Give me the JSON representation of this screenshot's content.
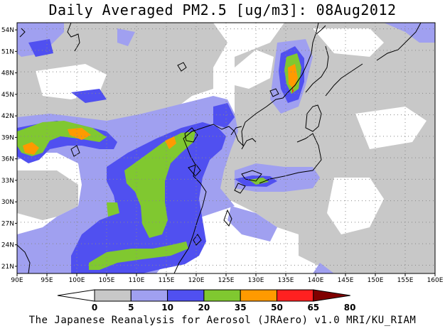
{
  "title": "Daily Averaged PM2.5 [ug/m3]: 08Aug2012",
  "credit": "The Japanese Reanalysis for Aerosol (JRAero) v1.0 MRI/KU_RIAM",
  "map": {
    "lon_range": [
      90,
      160
    ],
    "lat_range": [
      20,
      55
    ],
    "lon_labels": [
      "90E",
      "95E",
      "100E",
      "105E",
      "110E",
      "115E",
      "120E",
      "125E",
      "130E",
      "135E",
      "140E",
      "145E",
      "150E",
      "155E",
      "160E"
    ],
    "lat_labels": [
      "21N",
      "24N",
      "27N",
      "30N",
      "33N",
      "36N",
      "39N",
      "42N",
      "45N",
      "48N",
      "51N",
      "54N"
    ],
    "grid": "dotted"
  },
  "colorbar": {
    "levels": [
      "0",
      "5",
      "10",
      "20",
      "35",
      "50",
      "65",
      "80"
    ],
    "colors": [
      "#ffffff",
      "#c8c8c8",
      "#a0a0f0",
      "#5050f0",
      "#80c830",
      "#ff9a00",
      "#ff2020",
      "#800000"
    ]
  }
}
